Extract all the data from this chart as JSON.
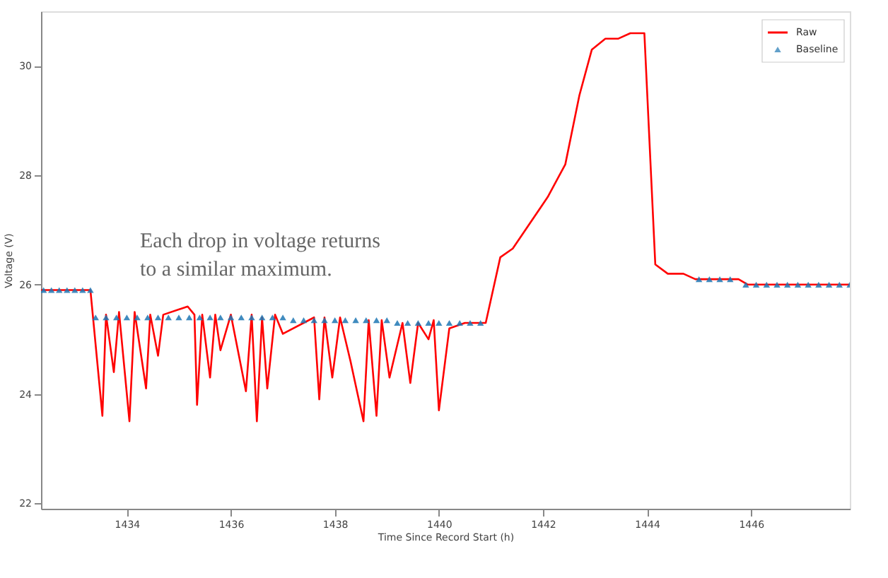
{
  "chart_data": {
    "type": "line",
    "xlabel": "Time Since Record Start (h)",
    "ylabel": "Voltage (V)",
    "xlim": [
      1432.35,
      1447.9
    ],
    "ylim": [
      21.9,
      31
    ],
    "xticks": [
      1434,
      1436,
      1438,
      1440,
      1442,
      1444,
      1446
    ],
    "yticks": [
      22,
      24,
      26,
      28,
      30
    ],
    "grid": false,
    "legend": "top right",
    "annotations": [
      "Each drop in voltage returns to a similar maximum."
    ],
    "series": [
      {
        "name": "Raw",
        "color": "#ff0000",
        "line_style": "solid",
        "marker": "none",
        "x": [
          1432.35,
          1433.3,
          1433.35,
          1433.53,
          1433.6,
          1433.75,
          1433.85,
          1434.05,
          1434.15,
          1434.37,
          1434.45,
          1434.6,
          1434.7,
          1435.17,
          1435.3,
          1435.35,
          1435.45,
          1435.6,
          1435.7,
          1435.8,
          1436.0,
          1436.29,
          1436.4,
          1436.5,
          1436.6,
          1436.7,
          1436.85,
          1437.0,
          1437.6,
          1437.7,
          1437.8,
          1437.95,
          1438.1,
          1438.3,
          1438.55,
          1438.65,
          1438.8,
          1438.9,
          1439.05,
          1439.3,
          1439.45,
          1439.6,
          1439.8,
          1439.9,
          1440.0,
          1440.2,
          1440.5,
          1440.9,
          1441.18,
          1441.42,
          1442.09,
          1442.43,
          1442.7,
          1442.94,
          1443.2,
          1443.45,
          1443.68,
          1443.95,
          1444.16,
          1444.4,
          1444.7,
          1444.93,
          1445.76,
          1445.94,
          1447.9
        ],
        "values": [
          25.9,
          25.9,
          25.4,
          23.6,
          25.45,
          24.4,
          25.5,
          23.5,
          25.5,
          24.1,
          25.45,
          24.7,
          25.45,
          25.6,
          25.45,
          23.8,
          25.45,
          24.3,
          25.45,
          24.8,
          25.45,
          24.05,
          25.45,
          23.5,
          25.4,
          24.1,
          25.45,
          25.1,
          25.4,
          23.9,
          25.4,
          24.3,
          25.4,
          24.6,
          23.5,
          25.35,
          23.6,
          25.35,
          24.3,
          25.3,
          24.2,
          25.3,
          25.0,
          25.35,
          23.7,
          25.2,
          25.3,
          25.3,
          26.5,
          26.66,
          27.6,
          28.2,
          29.46,
          30.3,
          30.5,
          30.5,
          30.6,
          30.6,
          26.37,
          26.2,
          26.2,
          26.1,
          26.1,
          26.0,
          26.0
        ]
      },
      {
        "name": "Baseline",
        "type": "scatter",
        "color": "#1f77b4",
        "marker": "triangle",
        "x": [
          1432.4,
          1432.55,
          1432.7,
          1432.85,
          1433.0,
          1433.15,
          1433.3,
          1433.4,
          1433.6,
          1433.8,
          1434.0,
          1434.2,
          1434.4,
          1434.6,
          1434.8,
          1435.0,
          1435.2,
          1435.4,
          1435.6,
          1435.8,
          1436.0,
          1436.2,
          1436.4,
          1436.6,
          1436.8,
          1437.0,
          1437.2,
          1437.4,
          1437.6,
          1437.8,
          1438.0,
          1438.2,
          1438.4,
          1438.6,
          1438.8,
          1439.0,
          1439.2,
          1439.4,
          1439.6,
          1439.8,
          1440.0,
          1440.2,
          1440.4,
          1440.6,
          1440.8,
          1445.0,
          1445.2,
          1445.4,
          1445.6,
          1445.9,
          1446.1,
          1446.3,
          1446.5,
          1446.7,
          1446.9,
          1447.1,
          1447.3,
          1447.5,
          1447.7,
          1447.9
        ],
        "values": [
          25.9,
          25.9,
          25.9,
          25.9,
          25.9,
          25.9,
          25.9,
          25.4,
          25.4,
          25.4,
          25.4,
          25.4,
          25.4,
          25.4,
          25.4,
          25.4,
          25.4,
          25.4,
          25.4,
          25.4,
          25.4,
          25.4,
          25.4,
          25.4,
          25.4,
          25.4,
          25.35,
          25.35,
          25.35,
          25.35,
          25.35,
          25.35,
          25.35,
          25.35,
          25.35,
          25.35,
          25.3,
          25.3,
          25.3,
          25.3,
          25.3,
          25.3,
          25.3,
          25.3,
          25.3,
          26.1,
          26.1,
          26.1,
          26.1,
          26.0,
          26.0,
          26.0,
          26.0,
          26.0,
          26.0,
          26.0,
          26.0,
          26.0,
          26.0,
          26.0
        ]
      }
    ]
  }
}
